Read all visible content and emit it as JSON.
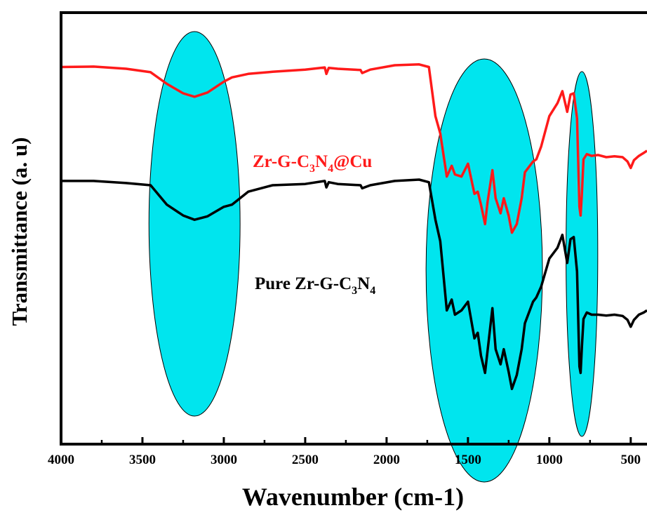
{
  "chart_data": {
    "type": "line",
    "xlabel": "Wavenumber (cm-1)",
    "ylabel": "Transmittance (a. u)",
    "xlim": [
      4000,
      400
    ],
    "ylim": [
      0,
      1
    ],
    "x_reversed": true,
    "x_ticks": [
      4000,
      3500,
      3000,
      2500,
      2000,
      1500,
      1000,
      500
    ],
    "y_ticks_shown": false,
    "grid": false,
    "highlight_regions": [
      {
        "center": 3180,
        "width": 560,
        "color": "#00e5ee"
      },
      {
        "center": 1400,
        "width": 715,
        "color": "#00e5ee"
      },
      {
        "center": 800,
        "width": 195,
        "color": "#00e5ee"
      }
    ],
    "series": [
      {
        "label_main": "Zr-G-C",
        "label_sub1": "3",
        "label_mid": "N",
        "label_sub2": "4",
        "label_end": "@Cu",
        "color": "#ff1a1a",
        "x": [
          4000,
          3800,
          3600,
          3450,
          3350,
          3250,
          3180,
          3100,
          3000,
          2950,
          2850,
          2700,
          2500,
          2380,
          2370,
          2355,
          2300,
          2160,
          2150,
          2100,
          1950,
          1800,
          1740,
          1700,
          1670,
          1630,
          1600,
          1580,
          1540,
          1500,
          1460,
          1440,
          1420,
          1395,
          1380,
          1350,
          1330,
          1300,
          1280,
          1250,
          1230,
          1200,
          1170,
          1150,
          1100,
          1080,
          1050,
          1000,
          950,
          920,
          890,
          870,
          850,
          830,
          815,
          808,
          800,
          790,
          770,
          740,
          700,
          650,
          600,
          550,
          520,
          500,
          480,
          450,
          420,
          400
        ],
        "y": [
          0.874,
          0.875,
          0.87,
          0.862,
          0.835,
          0.813,
          0.805,
          0.815,
          0.84,
          0.85,
          0.858,
          0.863,
          0.868,
          0.873,
          0.858,
          0.872,
          0.87,
          0.867,
          0.86,
          0.868,
          0.878,
          0.88,
          0.874,
          0.76,
          0.72,
          0.62,
          0.645,
          0.625,
          0.62,
          0.65,
          0.58,
          0.585,
          0.555,
          0.51,
          0.56,
          0.635,
          0.57,
          0.535,
          0.57,
          0.53,
          0.49,
          0.51,
          0.57,
          0.63,
          0.655,
          0.66,
          0.69,
          0.76,
          0.79,
          0.818,
          0.77,
          0.81,
          0.813,
          0.755,
          0.55,
          0.53,
          0.58,
          0.66,
          0.672,
          0.668,
          0.67,
          0.665,
          0.667,
          0.665,
          0.655,
          0.64,
          0.658,
          0.668,
          0.675,
          0.68
        ]
      },
      {
        "label_main": "Pure Zr-G-C",
        "label_sub1": "3",
        "label_mid": "N",
        "label_sub2": "4",
        "label_end": "",
        "color": "#000000",
        "x": [
          4000,
          3800,
          3600,
          3450,
          3350,
          3250,
          3180,
          3100,
          3000,
          2950,
          2850,
          2700,
          2500,
          2380,
          2370,
          2355,
          2300,
          2160,
          2150,
          2100,
          1950,
          1800,
          1740,
          1700,
          1670,
          1630,
          1600,
          1580,
          1540,
          1500,
          1460,
          1440,
          1420,
          1395,
          1380,
          1350,
          1330,
          1300,
          1280,
          1250,
          1230,
          1200,
          1170,
          1150,
          1100,
          1080,
          1050,
          1000,
          950,
          920,
          890,
          870,
          850,
          830,
          815,
          808,
          800,
          790,
          770,
          740,
          700,
          650,
          600,
          550,
          520,
          500,
          480,
          450,
          420,
          400
        ],
        "y": [
          0.61,
          0.61,
          0.605,
          0.6,
          0.555,
          0.53,
          0.52,
          0.528,
          0.55,
          0.555,
          0.585,
          0.6,
          0.603,
          0.61,
          0.595,
          0.607,
          0.603,
          0.6,
          0.593,
          0.6,
          0.61,
          0.613,
          0.607,
          0.52,
          0.47,
          0.31,
          0.335,
          0.3,
          0.31,
          0.33,
          0.245,
          0.258,
          0.205,
          0.165,
          0.215,
          0.315,
          0.22,
          0.185,
          0.22,
          0.168,
          0.128,
          0.16,
          0.22,
          0.28,
          0.33,
          0.34,
          0.365,
          0.43,
          0.455,
          0.485,
          0.42,
          0.475,
          0.48,
          0.4,
          0.18,
          0.165,
          0.225,
          0.29,
          0.305,
          0.3,
          0.3,
          0.298,
          0.3,
          0.297,
          0.288,
          0.272,
          0.288,
          0.3,
          0.305,
          0.31
        ]
      }
    ]
  }
}
